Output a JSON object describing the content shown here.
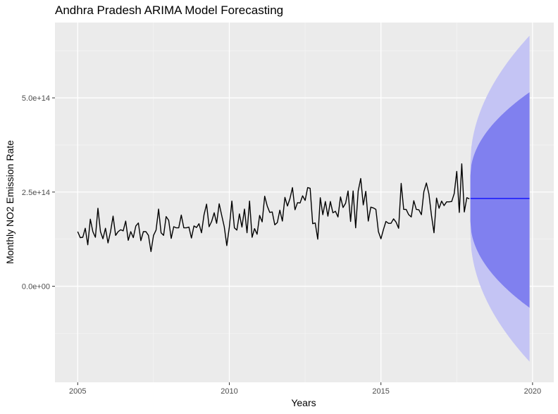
{
  "chart_data": {
    "type": "line",
    "title": "Andhra Pradesh ARIMA Model Forecasting",
    "xlabel": "Years",
    "ylabel": "Monthly NO2 Emission Rate",
    "xlim": [
      2004.25,
      2020.7
    ],
    "ylim": [
      -255000000000000.0,
      700000000000000.0
    ],
    "x_ticks": [
      2005,
      2010,
      2015,
      2020
    ],
    "x_tick_labels": [
      "2005",
      "2010",
      "2015",
      "2020"
    ],
    "y_ticks": [
      0,
      250000000000000.0,
      500000000000000.0
    ],
    "y_tick_labels": [
      "0.0e+00",
      "2.5e+14",
      "5.0e+14"
    ],
    "grid": true,
    "series": [
      {
        "role": "observed",
        "start": 2005.0,
        "frequency": 12,
        "values": [
          145000000000000.0,
          129000000000000.0,
          130000000000000.0,
          154000000000000.0,
          110000000000000.0,
          178000000000000.0,
          145000000000000.0,
          130000000000000.0,
          207000000000000.0,
          145000000000000.0,
          126000000000000.0,
          154000000000000.0,
          115000000000000.0,
          145000000000000.0,
          186000000000000.0,
          135000000000000.0,
          145000000000000.0,
          150000000000000.0,
          147000000000000.0,
          173000000000000.0,
          122000000000000.0,
          145000000000000.0,
          129000000000000.0,
          160000000000000.0,
          168000000000000.0,
          121000000000000.0,
          145000000000000.0,
          145000000000000.0,
          135000000000000.0,
          92000000000000.0,
          135000000000000.0,
          149000000000000.0,
          205000000000000.0,
          142000000000000.0,
          135000000000000.0,
          185000000000000.0,
          175000000000000.0,
          127000000000000.0,
          158000000000000.0,
          155000000000000.0,
          155000000000000.0,
          189000000000000.0,
          155000000000000.0,
          155000000000000.0,
          157000000000000.0,
          128000000000000.0,
          160000000000000.0,
          156000000000000.0,
          166000000000000.0,
          142000000000000.0,
          190000000000000.0,
          218000000000000.0,
          158000000000000.0,
          172000000000000.0,
          195000000000000.0,
          167000000000000.0,
          219000000000000.0,
          188000000000000.0,
          158000000000000.0,
          108000000000000.0,
          157000000000000.0,
          226000000000000.0,
          155000000000000.0,
          149000000000000.0,
          192000000000000.0,
          157000000000000.0,
          205000000000000.0,
          142000000000000.0,
          226000000000000.0,
          130000000000000.0,
          153000000000000.0,
          138000000000000.0,
          188000000000000.0,
          171000000000000.0,
          239000000000000.0,
          213000000000000.0,
          196000000000000.0,
          197000000000000.0,
          163000000000000.0,
          169000000000000.0,
          202000000000000.0,
          173000000000000.0,
          236000000000000.0,
          213000000000000.0,
          233000000000000.0,
          262000000000000.0,
          203000000000000.0,
          222000000000000.0,
          221000000000000.0,
          240000000000000.0,
          228000000000000.0,
          262000000000000.0,
          260000000000000.0,
          166000000000000.0,
          168000000000000.0,
          125000000000000.0,
          235000000000000.0,
          190000000000000.0,
          225000000000000.0,
          186000000000000.0,
          225000000000000.0,
          195000000000000.0,
          199000000000000.0,
          184000000000000.0,
          237000000000000.0,
          209000000000000.0,
          220000000000000.0,
          253000000000000.0,
          172000000000000.0,
          253000000000000.0,
          155000000000000.0,
          253000000000000.0,
          286000000000000.0,
          216000000000000.0,
          252000000000000.0,
          173000000000000.0,
          210000000000000.0,
          208000000000000.0,
          204000000000000.0,
          145000000000000.0,
          126000000000000.0,
          151000000000000.0,
          172000000000000.0,
          167000000000000.0,
          167000000000000.0,
          179000000000000.0,
          170000000000000.0,
          154000000000000.0,
          273000000000000.0,
          204000000000000.0,
          204000000000000.0,
          190000000000000.0,
          184000000000000.0,
          227000000000000.0,
          204000000000000.0,
          203000000000000.0,
          190000000000000.0,
          251000000000000.0,
          274000000000000.0,
          245000000000000.0,
          188000000000000.0,
          142000000000000.0,
          234000000000000.0,
          207000000000000.0,
          226000000000000.0,
          214000000000000.0,
          224000000000000.0,
          224000000000000.0,
          225000000000000.0,
          246000000000000.0,
          305000000000000.0,
          196000000000000.0,
          325000000000000.0,
          197000000000000.0,
          235000000000000.0,
          232000000000000.0
        ]
      },
      {
        "role": "forecast",
        "x": [
          2017.95,
          2019.9
        ],
        "values": [
          233000000000000.0,
          233000000000000.0
        ],
        "band80": {
          "lower": [
            173000000000000.0,
            -57000000000000.0
          ],
          "upper": [
            293000000000000.0,
            515000000000000.0
          ]
        },
        "band95": {
          "lower": [
            141000000000000.0,
            -200000000000000.0
          ],
          "upper": [
            325000000000000.0,
            665000000000000.0
          ]
        }
      }
    ]
  },
  "colors": {
    "panel": "#ebebeb",
    "grid_major": "#ffffff",
    "grid_minor": "#f5f5f5",
    "observed_line": "#000000",
    "forecast_line": "#0000ff",
    "band80": "#8080ef",
    "band95": "#c4c4f4"
  }
}
